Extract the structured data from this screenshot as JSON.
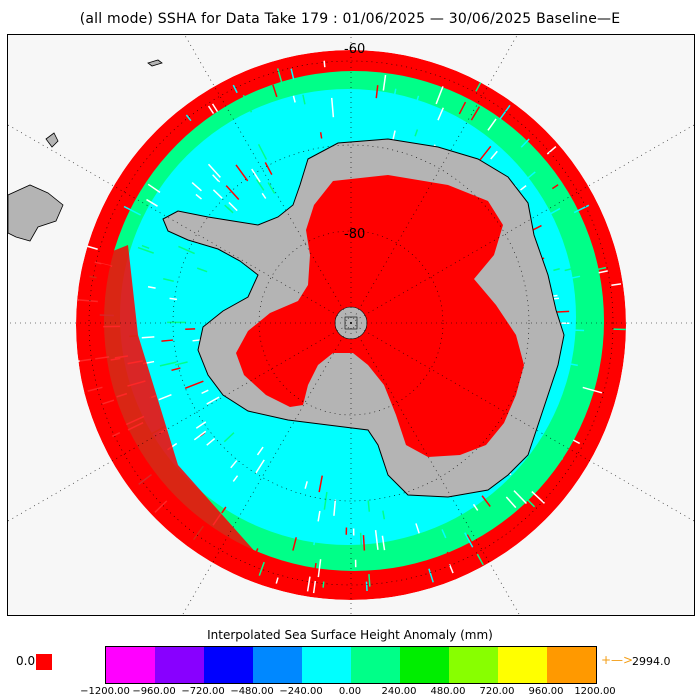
{
  "title": "(all mode) SSHA for Data Take 179 : 01/06/2025 — 30/06/2025 Baseline—E",
  "map": {
    "projection": "south polar stereographic",
    "lat_labels": [
      "-60",
      "-80"
    ],
    "colors": {
      "ocean_dominant": "#00ffff",
      "ocean_secondary": "#00ff88",
      "outer_ring": "#ff0000",
      "antarctic_interior": "#ff0000",
      "land": "#b4b4b4",
      "coastline": "#000000"
    }
  },
  "legend": {
    "title": "Interpolated Sea Surface Height Anomaly (mm)",
    "low_value_label": "0.0",
    "low_color": "#ff0000",
    "high_value_label": "2994.0",
    "high_arrow": "+—>",
    "colors": [
      "#ff00ff",
      "#8800ff",
      "#0000ff",
      "#0088ff",
      "#00ffff",
      "#00ff88",
      "#00ee00",
      "#88ff00",
      "#ffff00",
      "#ff9900"
    ],
    "ticks": [
      "−1200.00",
      "−960.00",
      "−720.00",
      "−480.00",
      "−240.00",
      "0.00",
      "240.00",
      "480.00",
      "720.00",
      "960.00",
      "1200.00"
    ]
  }
}
